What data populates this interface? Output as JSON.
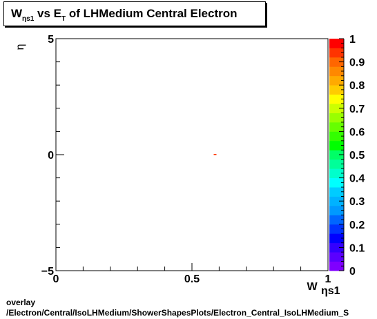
{
  "title": {
    "main": "W",
    "main_sub": "ηs1",
    "vs": " vs E",
    "vs_sub": "T",
    "rest": " of LHMedium Central  Electron"
  },
  "footer": {
    "line1": "overlay",
    "line2": "/Electron/Central/IsoLHMedium/ShowerShapesPlots/Electron_Central_IsoLHMedium_S"
  },
  "chart_data": {
    "type": "heatmap",
    "xlabel": "W",
    "xlabel_sub": "ηs1",
    "ylabel": "η",
    "xlim": [
      0,
      1
    ],
    "ylim": [
      -5,
      5
    ],
    "x_ticks": [
      {
        "value": 0,
        "label": "0"
      },
      {
        "value": 0.5,
        "label": "0.5"
      },
      {
        "value": 1,
        "label": "1"
      }
    ],
    "y_ticks": [
      {
        "value": -5,
        "label": "−5"
      },
      {
        "value": 0,
        "label": "0"
      },
      {
        "value": 5,
        "label": "5"
      }
    ],
    "z_range": [
      0,
      1
    ],
    "colorbar_ticks": [
      "0",
      "0.1",
      "0.2",
      "0.3",
      "0.4",
      "0.5",
      "0.6",
      "0.7",
      "0.8",
      "0.9",
      "1"
    ],
    "palette": [
      "#7f00ff",
      "#5a00ff",
      "#3300ff",
      "#0000ff",
      "#0033ff",
      "#0066ff",
      "#0099ff",
      "#00b2ff",
      "#00ccff",
      "#00ffff",
      "#00ffcc",
      "#00ff99",
      "#00ff66",
      "#00ff00",
      "#33ff00",
      "#66ff00",
      "#99ff00",
      "#ccff00",
      "#ffff00",
      "#ffcc00",
      "#ffaa00",
      "#ff8800",
      "#ff6600",
      "#ff3300",
      "#ff0000"
    ],
    "cells": [
      {
        "x": 0.585,
        "y": 0.0,
        "z": 0.95
      }
    ],
    "grid": false
  }
}
